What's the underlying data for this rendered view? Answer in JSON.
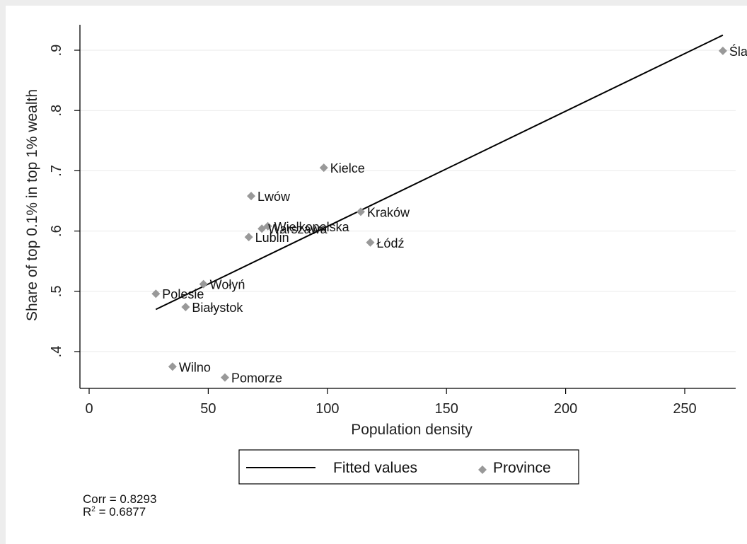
{
  "chart_data": {
    "type": "scatter",
    "xlabel": "Population density",
    "ylabel": "Share of top 0.1% in top 1% wealth",
    "xlim": [
      -4,
      270
    ],
    "ylim": [
      0.338,
      0.945
    ],
    "x_ticks": [
      0,
      50,
      100,
      150,
      200,
      250
    ],
    "x_tick_labels": [
      "0",
      "50",
      "100",
      "150",
      "200",
      "250"
    ],
    "y_ticks": [
      0.4,
      0.5,
      0.6,
      0.7,
      0.8,
      0.9
    ],
    "y_tick_labels": [
      ".4",
      ".5",
      ".6",
      ".7",
      ".8",
      ".9"
    ],
    "grid": "horizontal",
    "legend": {
      "placement": "bottom",
      "entries": [
        "Fitted values",
        "Province"
      ]
    },
    "fitted_line": {
      "name": "Fitted values",
      "x": [
        28,
        266
      ],
      "y": [
        0.47,
        0.925
      ],
      "color": "#000000"
    },
    "series": [
      {
        "name": "Province",
        "marker": "diamond",
        "color": "#999999",
        "points": [
          {
            "label": "Śląsk",
            "display_label": "Śla",
            "x": 266,
            "y": 0.899
          },
          {
            "label": "Kielce",
            "x": 98.5,
            "y": 0.705
          },
          {
            "label": "Lwów",
            "x": 68,
            "y": 0.658
          },
          {
            "label": "Kraków",
            "x": 114,
            "y": 0.632
          },
          {
            "label": "Wielkopolska",
            "x": 75,
            "y": 0.608
          },
          {
            "label": "Warszawa",
            "x": 72.5,
            "y": 0.604
          },
          {
            "label": "Lublin",
            "x": 67,
            "y": 0.59
          },
          {
            "label": "Łódź",
            "x": 118,
            "y": 0.581
          },
          {
            "label": "Wołyń",
            "x": 48,
            "y": 0.512
          },
          {
            "label": "Polesie",
            "x": 28,
            "y": 0.496
          },
          {
            "label": "Białystok",
            "x": 40.5,
            "y": 0.474
          },
          {
            "label": "Wilno",
            "x": 35,
            "y": 0.375
          },
          {
            "label": "Pomorze",
            "x": 57,
            "y": 0.357
          }
        ]
      }
    ]
  },
  "notes": {
    "corr": "Corr = 0.8293",
    "r2_prefix": "R",
    "r2_exp": "2",
    "r2_value": " = 0.6877"
  }
}
